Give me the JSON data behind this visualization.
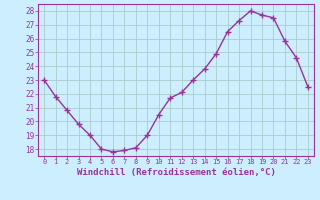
{
  "x": [
    0,
    1,
    2,
    3,
    4,
    5,
    6,
    7,
    8,
    9,
    10,
    11,
    12,
    13,
    14,
    15,
    16,
    17,
    18,
    19,
    20,
    21,
    22,
    23
  ],
  "y": [
    23.0,
    21.8,
    20.8,
    19.8,
    19.0,
    18.0,
    17.8,
    17.9,
    18.1,
    19.0,
    20.5,
    21.7,
    22.1,
    23.0,
    23.8,
    24.9,
    26.5,
    27.3,
    28.0,
    27.7,
    27.5,
    25.8,
    24.6,
    22.5
  ],
  "line_color": "#993399",
  "marker": "+",
  "marker_size": 4,
  "linewidth": 1.0,
  "markeredgewidth": 1.0,
  "xlabel": "Windchill (Refroidissement éolien,°C)",
  "xlabel_fontsize": 6.5,
  "ylim": [
    17.5,
    28.5
  ],
  "xlim": [
    -0.5,
    23.5
  ],
  "yticks": [
    18,
    19,
    20,
    21,
    22,
    23,
    24,
    25,
    26,
    27,
    28
  ],
  "xticks": [
    0,
    1,
    2,
    3,
    4,
    5,
    6,
    7,
    8,
    9,
    10,
    11,
    12,
    13,
    14,
    15,
    16,
    17,
    18,
    19,
    20,
    21,
    22,
    23
  ],
  "tick_fontsize": 5.0,
  "ytick_fontsize": 5.5,
  "bg_color": "#cceeff",
  "grid_color": "#aacccc",
  "line_color_spine": "#993399",
  "tick_color": "#993399",
  "tick_label_color": "#993399",
  "xlabel_color": "#993399"
}
